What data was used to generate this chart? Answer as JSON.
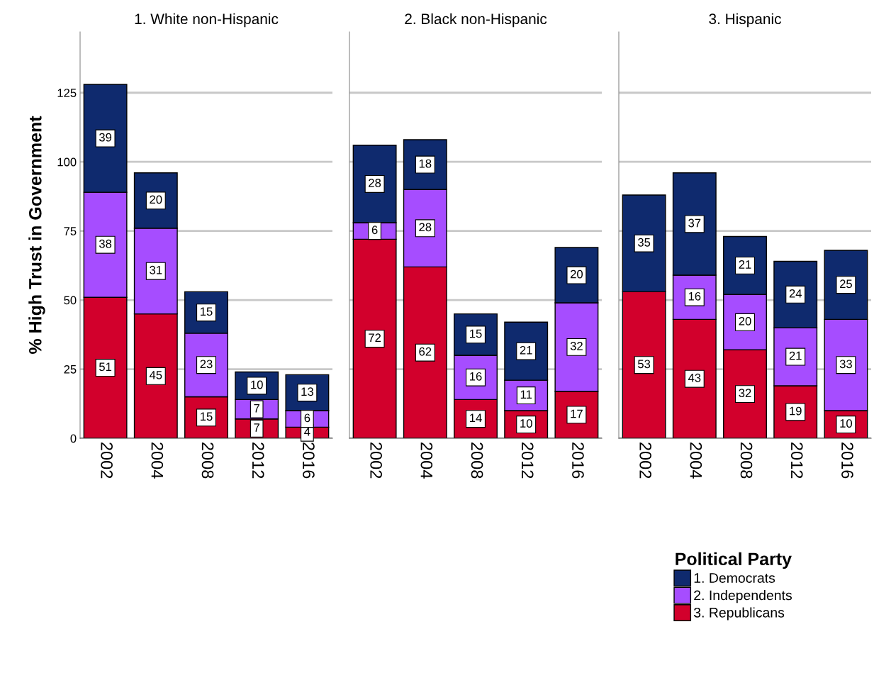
{
  "chart_data": [
    {
      "type": "bar",
      "stacked": true,
      "title": "1. White non-Hispanic",
      "ylabel": "% High Trust in Government",
      "categories": [
        "2002",
        "2004",
        "2008",
        "2012",
        "2016"
      ],
      "ylim": [
        0,
        147
      ],
      "yticks": [
        0,
        25,
        50,
        75,
        100,
        125
      ],
      "grid": "y",
      "data_labels": true,
      "series": [
        {
          "color": "#d2002c",
          "values": [
            51,
            45,
            15,
            7,
            4
          ]
        },
        {
          "color": "#a64dff",
          "values": [
            38,
            31,
            23,
            7,
            6
          ]
        },
        {
          "color": "#0f2a6e",
          "values": [
            39,
            20,
            15,
            10,
            13
          ]
        }
      ]
    },
    {
      "type": "bar",
      "stacked": true,
      "title": "2. Black non-Hispanic",
      "categories": [
        "2002",
        "2004",
        "2008",
        "2012",
        "2016"
      ],
      "ylim": [
        0,
        147
      ],
      "yticks": [
        0,
        25,
        50,
        75,
        100,
        125
      ],
      "grid": "y",
      "data_labels": true,
      "tick_labels": "x",
      "series": [
        {
          "color": "#d2002c",
          "values": [
            72,
            62,
            14,
            10,
            17
          ]
        },
        {
          "color": "#a64dff",
          "values": [
            6,
            28,
            16,
            11,
            32
          ]
        },
        {
          "color": "#0f2a6e",
          "values": [
            28,
            18,
            15,
            21,
            20
          ]
        }
      ]
    },
    {
      "type": "bar",
      "stacked": true,
      "title": "3. Hispanic",
      "categories": [
        "2002",
        "2004",
        "2008",
        "2012",
        "2016"
      ],
      "ylim": [
        0,
        147
      ],
      "yticks": [
        0,
        25,
        50,
        75,
        100,
        125
      ],
      "grid": "y",
      "data_labels": true,
      "tick_labels": "x",
      "legend": "bottom right",
      "legend_title": "Political Party",
      "series": [
        {
          "name": "3. Republicans",
          "color": "#d2002c",
          "values": [
            53,
            43,
            32,
            19,
            10
          ]
        },
        {
          "name": "2. Independents",
          "color": "#a64dff",
          "values": [
            null,
            16,
            20,
            21,
            33
          ]
        },
        {
          "name": "1. Democrats",
          "color": "#0f2a6e",
          "values": [
            35,
            37,
            21,
            24,
            25
          ]
        }
      ]
    }
  ]
}
